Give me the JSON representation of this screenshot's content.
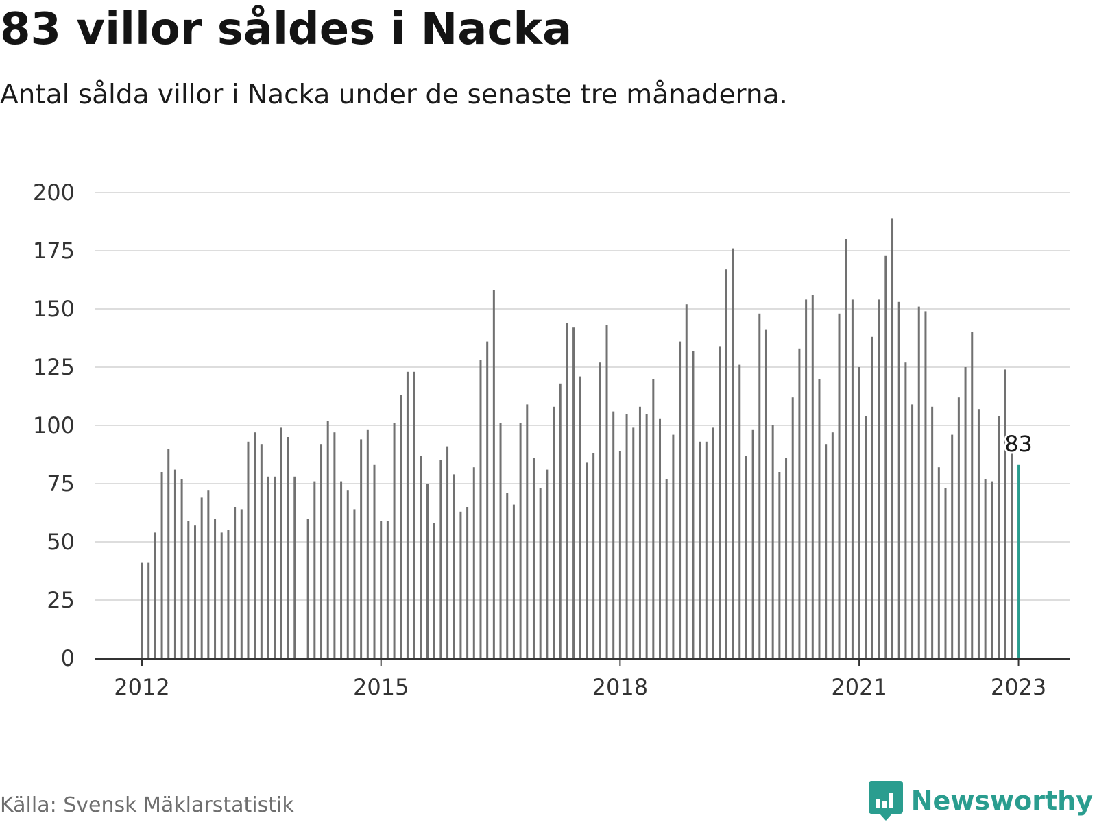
{
  "title": "83 villor såldes i Nacka",
  "subtitle": "Antal sålda villor i Nacka under de senaste tre månaderna.",
  "source": "Källa: Svensk Mäklarstatistik",
  "brand": {
    "name": "Newsworthy",
    "icon": "newsworthy-logo-icon",
    "color": "#2a9d8f"
  },
  "colors": {
    "bar": "#717171",
    "highlight": "#2a9d8f",
    "grid": "#dddddd",
    "axis": "#333333"
  },
  "chart_data": {
    "type": "bar",
    "x_start": "2012-01",
    "frequency": "monthly",
    "values": [
      41,
      41,
      54,
      80,
      90,
      81,
      77,
      59,
      57,
      69,
      72,
      60,
      54,
      55,
      65,
      64,
      93,
      97,
      92,
      78,
      78,
      99,
      95,
      78,
      null,
      60,
      76,
      92,
      102,
      97,
      76,
      72,
      64,
      94,
      98,
      83,
      59,
      59,
      101,
      113,
      123,
      123,
      87,
      75,
      58,
      85,
      91,
      79,
      63,
      65,
      82,
      128,
      136,
      158,
      101,
      71,
      66,
      101,
      109,
      86,
      73,
      81,
      108,
      118,
      144,
      142,
      121,
      84,
      88,
      127,
      143,
      106,
      89,
      105,
      99,
      108,
      105,
      120,
      103,
      77,
      96,
      136,
      152,
      132,
      93,
      93,
      99,
      134,
      167,
      176,
      126,
      87,
      98,
      148,
      141,
      100,
      80,
      86,
      112,
      133,
      154,
      156,
      120,
      92,
      97,
      148,
      180,
      154,
      125,
      104,
      138,
      154,
      173,
      189,
      153,
      127,
      109,
      151,
      149,
      108,
      82,
      73,
      96,
      112,
      125,
      140,
      107,
      77,
      76,
      104,
      124,
      88,
      83
    ],
    "x_ticks": [
      "2012",
      "2015",
      "2018",
      "2021",
      "2023"
    ],
    "y_ticks": [
      0,
      25,
      50,
      75,
      100,
      125,
      150,
      175,
      200
    ],
    "ylim": [
      0,
      200
    ],
    "grid": true,
    "highlight": {
      "label": "83",
      "value": 83
    },
    "xlabel": "",
    "ylabel": ""
  }
}
